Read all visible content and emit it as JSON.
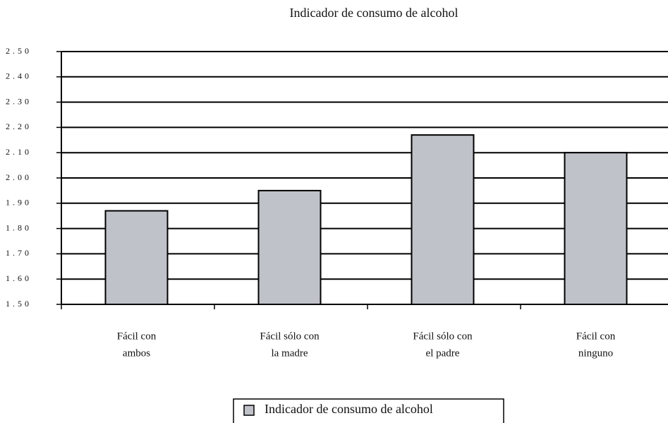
{
  "chart_data": {
    "type": "bar",
    "title": "Indicador de consumo de alcohol",
    "categories": [
      [
        "Fácil con",
        "ambos"
      ],
      [
        "Fácil sólo con",
        "la madre"
      ],
      [
        "Fácil sólo con",
        "el padre"
      ],
      [
        "Fácil con",
        "ninguno"
      ]
    ],
    "series": [
      {
        "name": "Indicador de consumo de alcohol",
        "color": "#c0c2c9",
        "values": [
          1.87,
          1.95,
          2.17,
          2.1
        ]
      }
    ],
    "ylim": [
      1.5,
      2.5
    ],
    "yticks": [
      {
        "value": 1.5,
        "label": "1.50"
      },
      {
        "value": 1.6,
        "label": "1.60"
      },
      {
        "value": 1.7,
        "label": "1.70"
      },
      {
        "value": 1.8,
        "label": "1.80"
      },
      {
        "value": 1.9,
        "label": "1.90"
      },
      {
        "value": 2.0,
        "label": "2.00"
      },
      {
        "value": 2.1,
        "label": "2.10"
      },
      {
        "value": 2.2,
        "label": "2.20"
      },
      {
        "value": 2.3,
        "label": "2.30"
      },
      {
        "value": 2.4,
        "label": "2.40"
      },
      {
        "value": 2.5,
        "label": "2.50"
      }
    ],
    "grid": true
  }
}
